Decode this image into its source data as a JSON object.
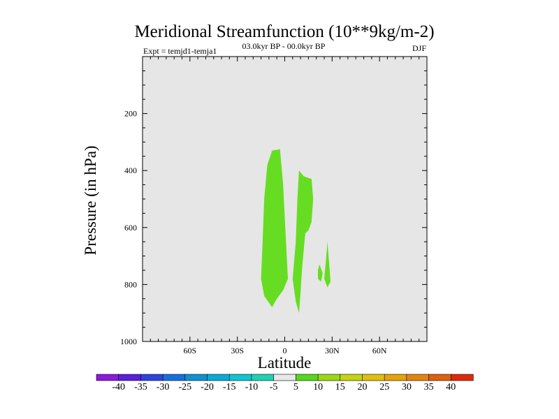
{
  "chart_data": {
    "type": "contour",
    "title": "Meridional Streamfunction (10**9kg/m-2)",
    "subtitle": "03.0kyr BP - 00.0kyr BP",
    "left_label": "Expt = temjd1-temja1",
    "right_label": "DJF",
    "xlabel": "Latitude",
    "ylabel": "Pressure (in hPa)",
    "xlim": [
      -90,
      90
    ],
    "ylim": [
      1000,
      0
    ],
    "x_ticks": [
      {
        "value": -60,
        "label": "60S"
      },
      {
        "value": -30,
        "label": "30S"
      },
      {
        "value": 0,
        "label": "0"
      },
      {
        "value": 30,
        "label": "30N"
      },
      {
        "value": 60,
        "label": "60N"
      }
    ],
    "y_ticks": [
      {
        "value": 200,
        "label": "200"
      },
      {
        "value": 400,
        "label": "400"
      },
      {
        "value": 600,
        "label": "600"
      },
      {
        "value": 800,
        "label": "800"
      },
      {
        "value": 1000,
        "label": "1000"
      }
    ],
    "background_color": "#e6e6e6",
    "regions": [
      {
        "name": "region-1",
        "level": "5 to 10",
        "color": "#66dd22",
        "points": [
          [
            -8,
            330
          ],
          [
            -3,
            325
          ],
          [
            -1,
            450
          ],
          [
            2,
            780
          ],
          [
            -1,
            820
          ],
          [
            -5,
            850
          ],
          [
            -8,
            880
          ],
          [
            -13,
            840
          ],
          [
            -15,
            780
          ],
          [
            -14,
            650
          ],
          [
            -13,
            500
          ],
          [
            -11,
            380
          ]
        ]
      },
      {
        "name": "region-2",
        "level": "5 to 10",
        "color": "#66dd22",
        "points": [
          [
            9,
            400
          ],
          [
            12,
            420
          ],
          [
            17,
            430
          ],
          [
            18,
            500
          ],
          [
            17,
            580
          ],
          [
            15,
            610
          ],
          [
            13,
            620
          ],
          [
            11,
            740
          ],
          [
            10,
            830
          ],
          [
            9,
            900
          ],
          [
            7,
            860
          ],
          [
            5,
            780
          ],
          [
            7,
            650
          ],
          [
            8,
            500
          ]
        ]
      },
      {
        "name": "region-3",
        "level": "5 to 10",
        "color": "#66dd22",
        "points": [
          [
            22,
            730
          ],
          [
            24,
            760
          ],
          [
            23,
            790
          ],
          [
            21,
            780
          ],
          [
            21,
            750
          ]
        ]
      },
      {
        "name": "region-4",
        "level": "5 to 10",
        "color": "#66dd22",
        "points": [
          [
            27,
            650
          ],
          [
            29,
            790
          ],
          [
            27,
            810
          ],
          [
            25,
            780
          ],
          [
            26,
            720
          ]
        ]
      }
    ],
    "colorbar": {
      "levels": [
        -40,
        -35,
        -30,
        -25,
        -20,
        -15,
        -10,
        -5,
        5,
        10,
        15,
        20,
        25,
        30,
        35,
        40
      ],
      "colors": [
        "#8b1adb",
        "#5a1edc",
        "#2f44dc",
        "#1670db",
        "#0d92d4",
        "#0aaad8",
        "#12c4d2",
        "#1fd2b0",
        "#e8e8e8",
        "#55d81e",
        "#9ad814",
        "#c4d410",
        "#e0c00c",
        "#e6a20a",
        "#e48410",
        "#e06010",
        "#dc2a0a"
      ]
    }
  }
}
